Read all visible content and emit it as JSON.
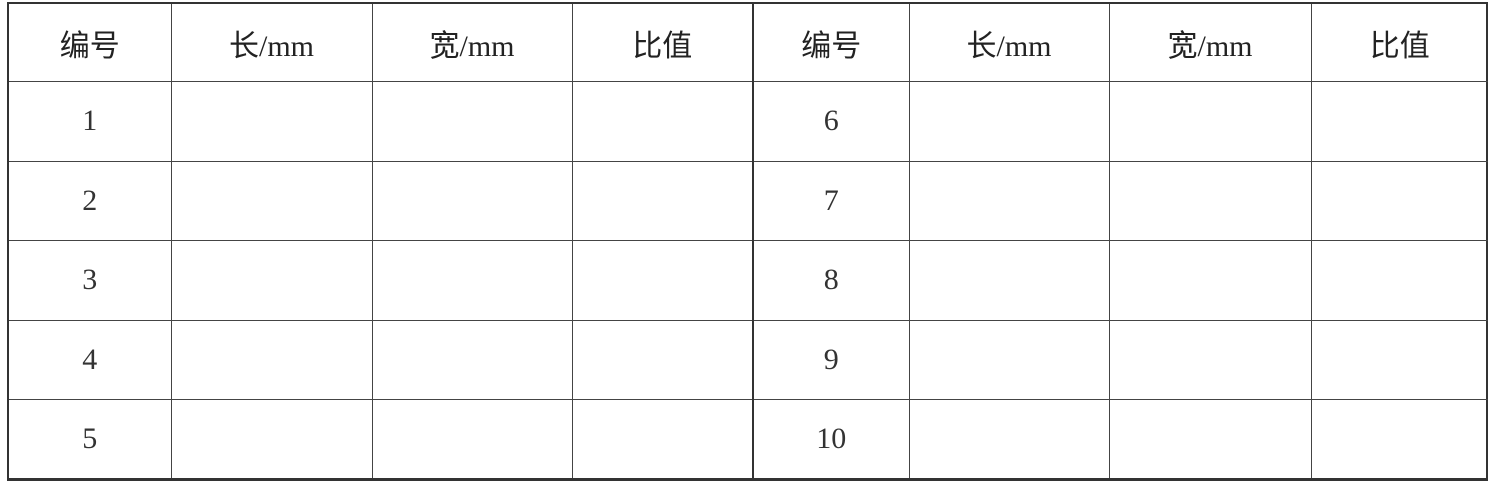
{
  "headers": [
    "编号",
    "长/mm",
    "宽/mm",
    "比值"
  ],
  "left_rows": [
    {
      "id": "1",
      "length": "",
      "width": "",
      "ratio": ""
    },
    {
      "id": "2",
      "length": "",
      "width": "",
      "ratio": ""
    },
    {
      "id": "3",
      "length": "",
      "width": "",
      "ratio": ""
    },
    {
      "id": "4",
      "length": "",
      "width": "",
      "ratio": ""
    },
    {
      "id": "5",
      "length": "",
      "width": "",
      "ratio": ""
    }
  ],
  "right_rows": [
    {
      "id": "6",
      "length": "",
      "width": "",
      "ratio": ""
    },
    {
      "id": "7",
      "length": "",
      "width": "",
      "ratio": ""
    },
    {
      "id": "8",
      "length": "",
      "width": "",
      "ratio": ""
    },
    {
      "id": "9",
      "length": "",
      "width": "",
      "ratio": ""
    },
    {
      "id": "10",
      "length": "",
      "width": "",
      "ratio": ""
    }
  ]
}
